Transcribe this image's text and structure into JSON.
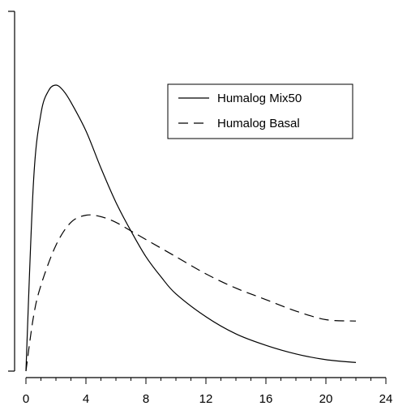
{
  "chart_data": {
    "type": "line",
    "xlim": [
      0,
      24
    ],
    "x_ticks": [
      "0",
      "4",
      "8",
      "12",
      "16",
      "20",
      "24"
    ],
    "x_minor_tick_step": 1,
    "y_ticks_labeled": false,
    "grid": false,
    "legend_placement": "top-right",
    "series": [
      {
        "name": "Humalog Mix50",
        "line_style": "solid",
        "color": "#000000",
        "x": [
          0,
          0.5,
          1,
          1.5,
          2,
          2.5,
          3,
          4,
          5,
          6,
          7,
          8,
          9,
          10,
          12,
          14,
          16,
          18,
          20,
          22
        ],
        "y": [
          0,
          0.66,
          0.9,
          0.98,
          1.0,
          0.98,
          0.94,
          0.84,
          0.71,
          0.59,
          0.49,
          0.4,
          0.33,
          0.27,
          0.19,
          0.13,
          0.09,
          0.06,
          0.04,
          0.03
        ]
      },
      {
        "name": "Humalog Basal",
        "line_style": "dashed",
        "color": "#000000",
        "x": [
          0,
          0.5,
          1,
          2,
          3,
          4,
          5,
          6,
          7,
          8,
          10,
          12,
          14,
          16,
          18,
          20,
          22
        ],
        "y": [
          0,
          0.19,
          0.3,
          0.44,
          0.52,
          0.545,
          0.54,
          0.52,
          0.49,
          0.46,
          0.4,
          0.34,
          0.29,
          0.25,
          0.21,
          0.18,
          0.175
        ]
      }
    ]
  }
}
